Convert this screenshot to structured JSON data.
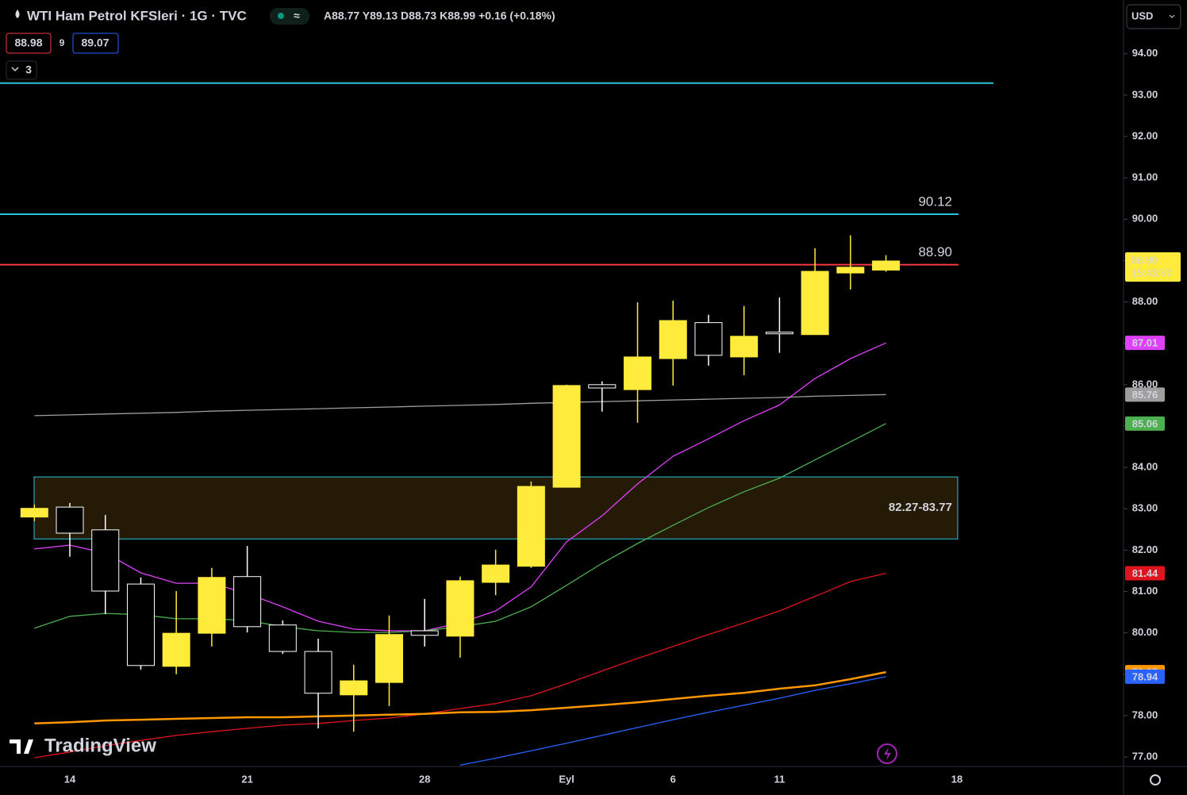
{
  "toolbar": {
    "sell": "88.98",
    "spread": "9",
    "buy": "89.07",
    "indicators_count": "3",
    "currency": "USD",
    "logo": "TradingView"
  },
  "chart_data": {
    "type": "candlestick",
    "title": "WTI Ham Petrol KFSleri · 1G · TVC",
    "ohlc_legend": "A88.77 Y89.13 D88.73 K88.99 +0.16 (+0.18%)",
    "countdown": "15:43:57",
    "categories": [
      null,
      "14",
      null,
      null,
      null,
      null,
      "21",
      null,
      null,
      null,
      null,
      "28",
      null,
      null,
      null,
      "Eyl",
      null,
      null,
      "6",
      null,
      null,
      "11",
      null,
      null,
      null,
      null,
      "18"
    ],
    "open": [
      82.8,
      83.04,
      82.49,
      81.18,
      79.19,
      79.99,
      81.36,
      80.19,
      79.55,
      78.5,
      78.8,
      80.05,
      79.92,
      81.22,
      81.61,
      83.52,
      86.0,
      85.88,
      86.63,
      87.5,
      86.67,
      87.27,
      87.21,
      88.7,
      88.77,
      null,
      null
    ],
    "high": [
      83.1,
      83.14,
      82.85,
      81.34,
      81.01,
      81.57,
      82.1,
      80.3,
      79.86,
      79.23,
      80.42,
      80.82,
      81.36,
      82.01,
      83.66,
      86.0,
      86.08,
      87.99,
      88.03,
      87.69,
      87.9,
      88.11,
      89.3,
      89.61,
      89.13,
      null,
      null
    ],
    "low": [
      82.7,
      81.84,
      80.45,
      79.11,
      79.0,
      79.67,
      80.01,
      79.49,
      77.69,
      77.61,
      78.23,
      79.67,
      79.4,
      80.91,
      81.57,
      83.52,
      85.35,
      85.08,
      85.98,
      86.46,
      86.23,
      86.77,
      87.21,
      88.3,
      88.73,
      null,
      null
    ],
    "close": [
      83.01,
      82.41,
      81.01,
      79.21,
      79.99,
      81.34,
      80.15,
      79.55,
      78.54,
      78.84,
      79.96,
      79.94,
      81.26,
      81.64,
      83.54,
      85.98,
      85.92,
      86.67,
      87.55,
      86.71,
      87.17,
      87.23,
      88.74,
      88.84,
      88.99,
      null,
      null
    ],
    "up_color": "#ffeb3b",
    "down_color": "#000000",
    "down_border": "#ffffff",
    "series": [
      {
        "color": "#e040fb",
        "values": [
          82.03,
          82.12,
          81.93,
          81.45,
          81.2,
          81.2,
          80.95,
          80.63,
          80.28,
          80.09,
          80.05,
          80.05,
          80.24,
          80.53,
          81.11,
          82.2,
          82.83,
          83.6,
          84.27,
          84.69,
          85.13,
          85.51,
          86.15,
          86.63,
          87.01,
          null,
          null
        ]
      },
      {
        "color": "#4caf50",
        "values": [
          80.11,
          80.4,
          80.47,
          80.44,
          80.34,
          80.34,
          80.3,
          80.15,
          80.05,
          80.01,
          80.01,
          80.05,
          80.15,
          80.28,
          80.63,
          81.15,
          81.68,
          82.16,
          82.6,
          83.03,
          83.41,
          83.74,
          84.18,
          84.62,
          85.06,
          null,
          null
        ]
      },
      {
        "color": "#9e9e9e",
        "values": [
          85.25,
          85.27,
          85.29,
          85.31,
          85.33,
          85.36,
          85.38,
          85.4,
          85.42,
          85.44,
          85.46,
          85.48,
          85.5,
          85.52,
          85.55,
          85.57,
          85.59,
          85.61,
          85.63,
          85.65,
          85.67,
          85.69,
          85.72,
          85.74,
          85.76,
          null,
          null
        ]
      },
      {
        "color": "#e0141e",
        "values": [
          76.98,
          77.12,
          77.27,
          77.4,
          77.52,
          77.61,
          77.69,
          77.77,
          77.81,
          77.88,
          77.94,
          78.04,
          78.17,
          78.29,
          78.48,
          78.77,
          79.08,
          79.38,
          79.67,
          79.96,
          80.24,
          80.53,
          80.88,
          81.24,
          81.44,
          null,
          null
        ]
      },
      {
        "color": "#ff9800",
        "values": [
          77.81,
          77.84,
          77.88,
          77.9,
          77.92,
          77.94,
          77.96,
          77.96,
          77.98,
          78.0,
          78.02,
          78.04,
          78.08,
          78.09,
          78.13,
          78.19,
          78.25,
          78.32,
          78.4,
          78.48,
          78.55,
          78.65,
          78.73,
          78.88,
          79.05,
          null,
          null
        ]
      },
      {
        "color": "#2962ff",
        "values": [
          null,
          null,
          null,
          null,
          null,
          null,
          null,
          null,
          null,
          null,
          null,
          null,
          76.8,
          76.97,
          77.15,
          77.33,
          77.52,
          77.71,
          77.9,
          78.08,
          78.25,
          78.42,
          78.61,
          78.77,
          78.94,
          null,
          null
        ]
      }
    ],
    "levels": [
      {
        "value": 93.29,
        "color": "#26c6da"
      },
      {
        "value": 90.12,
        "label": "90.12",
        "color": "#26c6da"
      },
      {
        "value": 88.9,
        "label": "88.90",
        "color": "#f23645"
      }
    ],
    "zone": {
      "low": 82.27,
      "high": 83.77,
      "label": "82.27-83.77"
    },
    "ylim": [
      76.77,
      95.3
    ],
    "yticks": [
      {
        "value": 77,
        "label": "77.00"
      },
      {
        "value": 78,
        "label": "78.00"
      },
      {
        "value": 79,
        "label": "79.00"
      },
      {
        "value": 80,
        "label": "80.00"
      },
      {
        "value": 81,
        "label": "81.00"
      },
      {
        "value": 82,
        "label": "82.00"
      },
      {
        "value": 83,
        "label": "83.00"
      },
      {
        "value": 84,
        "label": "84.00"
      },
      {
        "value": 85,
        "label": "85.00"
      },
      {
        "value": 86,
        "label": "86.00"
      },
      {
        "value": 87,
        "label": "87.00"
      },
      {
        "value": 88,
        "label": "88.00"
      },
      {
        "value": 89,
        "label": "89.00"
      },
      {
        "value": 90,
        "label": "90.00"
      },
      {
        "value": 91,
        "label": "91.00"
      },
      {
        "value": 92,
        "label": "92.00"
      },
      {
        "value": 93,
        "label": "93.00"
      },
      {
        "value": 94,
        "label": "94.00"
      }
    ]
  }
}
